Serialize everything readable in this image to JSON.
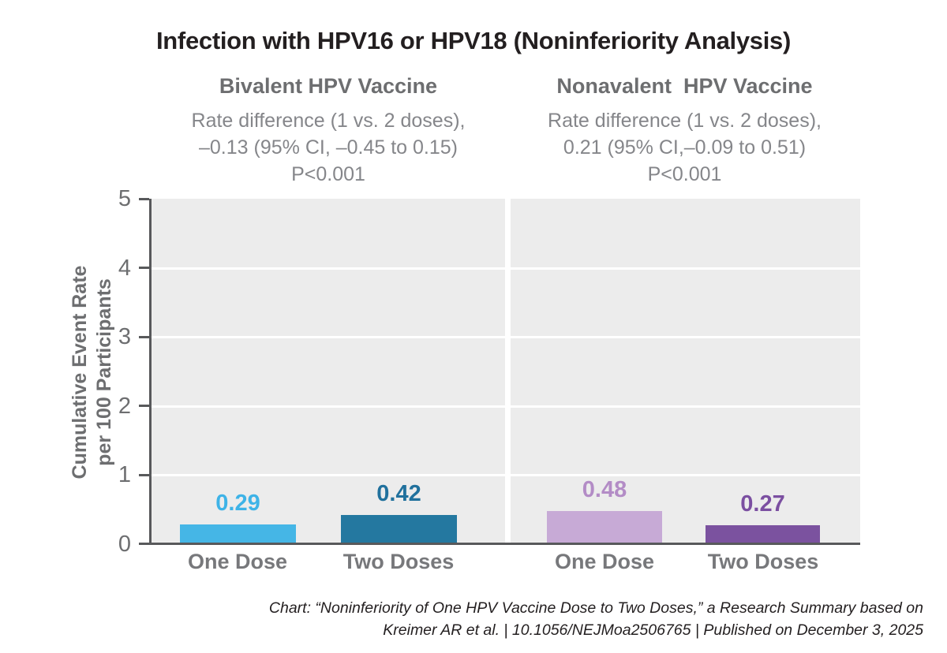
{
  "title": "Infection with HPV16 or HPV18 (Noninferiority Analysis)",
  "y_axis": {
    "label_line1": "Cumulative Event Rate",
    "label_line2": "per 100 Participants",
    "ticks": [
      "5",
      "4",
      "3",
      "2",
      "1",
      "0"
    ]
  },
  "footer": {
    "line1": "Chart: “Noninferiority of One HPV Vaccine Dose to Two Doses,” a Research Summary based on",
    "line2": "Kreimer AR et al. | 10.1056/NEJMoa2506765 | Published on December 3, 2025"
  },
  "colors": {
    "panel_background": "#ececec",
    "axis": "#58595b",
    "gridline": "#ffffff",
    "heading_gray": "#6d6e70",
    "subtitle_gray": "#85868a",
    "category_gray": "#77787b",
    "title_text": "#231f20"
  },
  "chart_data": {
    "type": "bar",
    "title": "Infection with HPV16 or HPV18 (Noninferiority Analysis)",
    "ylabel": "Cumulative Event Rate per 100 Participants",
    "xlabel": "",
    "ylim": [
      0,
      5
    ],
    "yticks": [
      0,
      1,
      2,
      3,
      4,
      5
    ],
    "grid": "horizontal white gridlines at integer values on light gray panel background",
    "legend": "none",
    "panels": [
      {
        "name": "Bivalent HPV Vaccine",
        "subtitle_line1": "Rate difference (1 vs. 2 doses),",
        "subtitle_line2": "–0.13 (95% CI, –0.45 to 0.15)",
        "pvalue": "P<0.001",
        "categories": [
          "One Dose",
          "Two Doses"
        ],
        "values": [
          0.29,
          0.42
        ],
        "value_labels": [
          "0.29",
          "0.42"
        ],
        "bar_colors": [
          "#45b6e6",
          "#2478a0"
        ],
        "label_colors": [
          "#3eb3e7",
          "#21719d"
        ]
      },
      {
        "name": "Nonavalent  HPV Vaccine",
        "subtitle_line1": "Rate difference (1 vs. 2 doses),",
        "subtitle_line2": "0.21 (95% CI,–0.09 to 0.51)",
        "pvalue": "P<0.001",
        "categories": [
          "One Dose",
          "Two Doses"
        ],
        "values": [
          0.48,
          0.27
        ],
        "value_labels": [
          "0.48",
          "0.27"
        ],
        "bar_colors": [
          "#c7aad6",
          "#7b529f"
        ],
        "label_colors": [
          "#b38cc6",
          "#7b4fa1"
        ]
      }
    ]
  }
}
